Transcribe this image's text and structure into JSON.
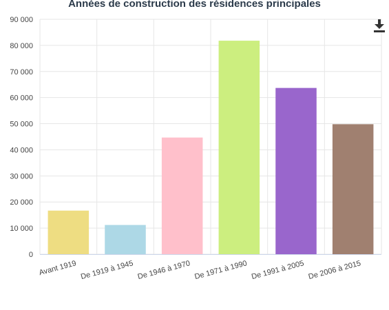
{
  "chart_data": {
    "type": "bar",
    "title": "Années de construction des résidences principales",
    "categories": [
      "Avant 1919",
      "De 1919 à 1945",
      "De 1946 à 1970",
      "De 1971 à 1990",
      "De 1991 à 2005",
      "De 2006 à 2015"
    ],
    "values": [
      16700,
      11200,
      44700,
      81800,
      63700,
      49800
    ],
    "colors": [
      "#eedd82",
      "#add8e6",
      "#ffc0cb",
      "#ccee7f",
      "#9966cc",
      "#a08070"
    ],
    "ylim": [
      0,
      90000
    ],
    "yticks": [
      0,
      10000,
      20000,
      30000,
      40000,
      50000,
      60000,
      70000,
      80000,
      90000
    ],
    "ytick_labels": [
      "0",
      "10 000",
      "20 000",
      "30 000",
      "40 000",
      "50 000",
      "60 000",
      "70 000",
      "80 000",
      "90 000"
    ],
    "grid": true,
    "xlabel": "",
    "ylabel": ""
  },
  "toolbar": {
    "download_icon": "download-icon"
  }
}
